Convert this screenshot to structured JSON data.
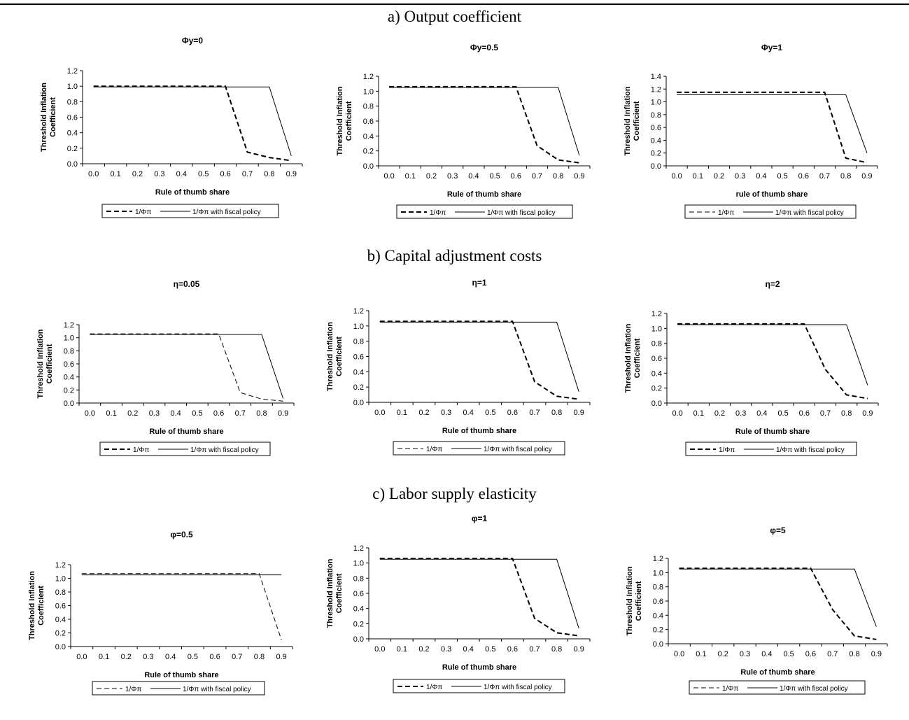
{
  "sections": [
    {
      "title": "a) Output coefficient"
    },
    {
      "title": "b) Capital adjustment costs"
    },
    {
      "title": "c) Labor supply elasticity"
    }
  ],
  "chart_data": [
    {
      "type": "line",
      "title": "Φy=0",
      "xlabel": "Rule of thumb share",
      "ylabel": [
        "Threshold Inflation",
        "Coefficient"
      ],
      "categories": [
        "0.0",
        "0.1",
        "0.2",
        "0.3",
        "0.4",
        "0.5",
        "0.6",
        "0.7",
        "0.8",
        "0.9"
      ],
      "yticks": [
        "0.0",
        "0.2",
        "0.4",
        "0.6",
        "0.8",
        "1.0",
        "1.2"
      ],
      "ylim": [
        0,
        1.2
      ],
      "series": [
        {
          "name": "1/Φπ",
          "style": "dashed-bold",
          "values": [
            1.0,
            1.0,
            1.0,
            1.0,
            1.0,
            1.0,
            1.0,
            0.15,
            0.08,
            0.04
          ]
        },
        {
          "name": "1/Φπ with fiscal policy",
          "style": "solid",
          "values": [
            0.99,
            0.99,
            0.99,
            0.99,
            0.99,
            0.99,
            0.99,
            0.99,
            0.99,
            0.1
          ]
        }
      ],
      "legend": "bottom"
    },
    {
      "type": "line",
      "title": "Φy=0.5",
      "xlabel": "Rule of thumb share",
      "ylabel": [
        "Threshold Inflation",
        "Coefficient"
      ],
      "categories": [
        "0.0",
        "0.1",
        "0.2",
        "0.3",
        "0.4",
        "0.5",
        "0.6",
        "0.7",
        "0.8",
        "0.9"
      ],
      "yticks": [
        "0.0",
        "0.2",
        "0.4",
        "0.6",
        "0.8",
        "1.0",
        "1.2"
      ],
      "ylim": [
        0,
        1.2
      ],
      "series": [
        {
          "name": "1/Φπ",
          "style": "dashed-bold",
          "values": [
            1.06,
            1.06,
            1.06,
            1.06,
            1.06,
            1.06,
            1.06,
            0.27,
            0.08,
            0.04
          ]
        },
        {
          "name": "1/Φπ with fiscal policy",
          "style": "solid",
          "values": [
            1.05,
            1.05,
            1.05,
            1.05,
            1.05,
            1.05,
            1.05,
            1.05,
            1.05,
            0.14
          ]
        }
      ],
      "legend": "bottom"
    },
    {
      "type": "line",
      "title": "Φy=1",
      "xlabel": "rule of thumb share",
      "ylabel": [
        "Threshold Inflation",
        "Coefficient"
      ],
      "categories": [
        "0.0",
        "0.1",
        "0.2",
        "0.3",
        "0.4",
        "0.5",
        "0.6",
        "0.7",
        "0.8",
        "0.9"
      ],
      "yticks": [
        "0.0",
        "0.2",
        "0.4",
        "0.6",
        "0.8",
        "1.0",
        "1.2",
        "1.4"
      ],
      "ylim": [
        0,
        1.4
      ],
      "series": [
        {
          "name": "1/Φπ",
          "style": "dashed-bold",
          "values": [
            1.15,
            1.15,
            1.15,
            1.15,
            1.15,
            1.15,
            1.15,
            1.15,
            0.12,
            0.05
          ]
        },
        {
          "name": "1/Φπ with fiscal policy",
          "style": "solid",
          "values": [
            1.11,
            1.11,
            1.11,
            1.11,
            1.11,
            1.11,
            1.11,
            1.11,
            1.11,
            0.2
          ]
        }
      ],
      "legend": "bottom",
      "legend_dash": "thin"
    },
    {
      "type": "line",
      "title": "η=0.05",
      "xlabel": "Rule of thumb share",
      "ylabel": [
        "Threshold Inflation",
        "Coefficient"
      ],
      "categories": [
        "0.0",
        "0.1",
        "0.2",
        "0.3",
        "0.4",
        "0.5",
        "0.6",
        "0.7",
        "0.8",
        "0.9"
      ],
      "yticks": [
        "0.0",
        "0.2",
        "0.4",
        "0.6",
        "0.8",
        "1.0",
        "1.2"
      ],
      "ylim": [
        0,
        1.2
      ],
      "series": [
        {
          "name": "1/Φπ",
          "style": "dashed",
          "values": [
            1.06,
            1.06,
            1.06,
            1.06,
            1.06,
            1.06,
            1.06,
            0.16,
            0.06,
            0.03
          ]
        },
        {
          "name": "1/Φπ with fiscal policy",
          "style": "solid",
          "values": [
            1.05,
            1.05,
            1.05,
            1.05,
            1.05,
            1.05,
            1.05,
            1.05,
            1.05,
            0.07
          ]
        }
      ],
      "legend": "bottom",
      "legend_dash": "bold"
    },
    {
      "type": "line",
      "title": "η=1",
      "xlabel": "Rule of thumb share",
      "ylabel": [
        "Threshold Inflation",
        "Coefficient"
      ],
      "categories": [
        "0.0",
        "0.1",
        "0.2",
        "0.3",
        "0.4",
        "0.5",
        "0.6",
        "0.7",
        "0.8",
        "0.9"
      ],
      "yticks": [
        "0.0",
        "0.2",
        "0.4",
        "0.6",
        "0.8",
        "1.0",
        "1.2"
      ],
      "ylim": [
        0,
        1.2
      ],
      "series": [
        {
          "name": "1/Φπ",
          "style": "dashed-bold",
          "values": [
            1.06,
            1.06,
            1.06,
            1.06,
            1.06,
            1.06,
            1.06,
            0.27,
            0.08,
            0.04
          ]
        },
        {
          "name": "1/Φπ with fiscal policy",
          "style": "solid",
          "values": [
            1.05,
            1.05,
            1.05,
            1.05,
            1.05,
            1.05,
            1.05,
            1.05,
            1.05,
            0.14
          ]
        }
      ],
      "legend": "bottom",
      "legend_dash": "thin"
    },
    {
      "type": "line",
      "title": "η=2",
      "xlabel": "Rule of thumb share",
      "ylabel": [
        "Threshold Inflation",
        "Coefficient"
      ],
      "categories": [
        "0.0",
        "0.1",
        "0.2",
        "0.3",
        "0.4",
        "0.5",
        "0.6",
        "0.7",
        "0.8",
        "0.9"
      ],
      "yticks": [
        "0.0",
        "0.2",
        "0.4",
        "0.6",
        "0.8",
        "1.0",
        "1.2"
      ],
      "ylim": [
        0,
        1.2
      ],
      "series": [
        {
          "name": "1/Φπ",
          "style": "dashed-bold",
          "values": [
            1.06,
            1.06,
            1.06,
            1.06,
            1.06,
            1.06,
            1.06,
            0.45,
            0.11,
            0.06
          ]
        },
        {
          "name": "1/Φπ with fiscal policy",
          "style": "solid",
          "values": [
            1.05,
            1.05,
            1.05,
            1.05,
            1.05,
            1.05,
            1.05,
            1.05,
            1.05,
            0.24
          ]
        }
      ],
      "legend": "bottom"
    },
    {
      "type": "line",
      "title": "φ=0.5",
      "xlabel": "Rule of thumb share",
      "ylabel": [
        "Threshold Inflation",
        "Coefficient"
      ],
      "categories": [
        "0.0",
        "0.1",
        "0.2",
        "0.3",
        "0.4",
        "0.5",
        "0.6",
        "0.7",
        "0.8",
        "0.9"
      ],
      "yticks": [
        "0.0",
        "0.2",
        "0.4",
        "0.6",
        "0.8",
        "1.0",
        "1.2"
      ],
      "ylim": [
        0,
        1.2
      ],
      "series": [
        {
          "name": "1/Φπ",
          "style": "dashed",
          "values": [
            1.07,
            1.07,
            1.07,
            1.07,
            1.07,
            1.07,
            1.07,
            1.07,
            1.07,
            0.1
          ]
        },
        {
          "name": "1/Φπ with fiscal policy",
          "style": "solid",
          "values": [
            1.05,
            1.05,
            1.05,
            1.05,
            1.05,
            1.05,
            1.05,
            1.05,
            1.05,
            1.05
          ]
        }
      ],
      "legend": "bottom"
    },
    {
      "type": "line",
      "title": "φ=1",
      "xlabel": "Rule of thumb share",
      "ylabel": [
        "Threshold Inflation",
        "Coefficient"
      ],
      "categories": [
        "0.0",
        "0.1",
        "0.2",
        "0.3",
        "0.4",
        "0.5",
        "0.6",
        "0.7",
        "0.8",
        "0.9"
      ],
      "yticks": [
        "0.0",
        "0.2",
        "0.4",
        "0.6",
        "0.8",
        "1.0",
        "1.2"
      ],
      "ylim": [
        0,
        1.2
      ],
      "series": [
        {
          "name": "1/Φπ",
          "style": "dashed-bold",
          "values": [
            1.06,
            1.06,
            1.06,
            1.06,
            1.06,
            1.06,
            1.06,
            0.27,
            0.08,
            0.04
          ]
        },
        {
          "name": "1/Φπ with fiscal policy",
          "style": "solid",
          "values": [
            1.05,
            1.05,
            1.05,
            1.05,
            1.05,
            1.05,
            1.05,
            1.05,
            1.05,
            0.14
          ]
        }
      ],
      "legend": "bottom"
    },
    {
      "type": "line",
      "title": "φ=5",
      "xlabel": "Rule of thumb share",
      "ylabel": [
        "Threshold Inflation",
        "Coefficient"
      ],
      "categories": [
        "0.0",
        "0.1",
        "0.2",
        "0.3",
        "0.4",
        "0.5",
        "0.6",
        "0.7",
        "0.8",
        "0.9"
      ],
      "yticks": [
        "0.0",
        "0.2",
        "0.4",
        "0.6",
        "0.8",
        "1.0",
        "1.2"
      ],
      "ylim": [
        0,
        1.2
      ],
      "series": [
        {
          "name": "1/Φπ",
          "style": "dashed-bold",
          "values": [
            1.06,
            1.06,
            1.06,
            1.06,
            1.06,
            1.06,
            1.06,
            0.48,
            0.11,
            0.06
          ]
        },
        {
          "name": "1/Φπ with fiscal policy",
          "style": "solid",
          "values": [
            1.05,
            1.05,
            1.05,
            1.05,
            1.05,
            1.05,
            1.05,
            1.05,
            1.05,
            0.24
          ]
        }
      ],
      "legend": "bottom",
      "legend_dash": "thin"
    }
  ]
}
